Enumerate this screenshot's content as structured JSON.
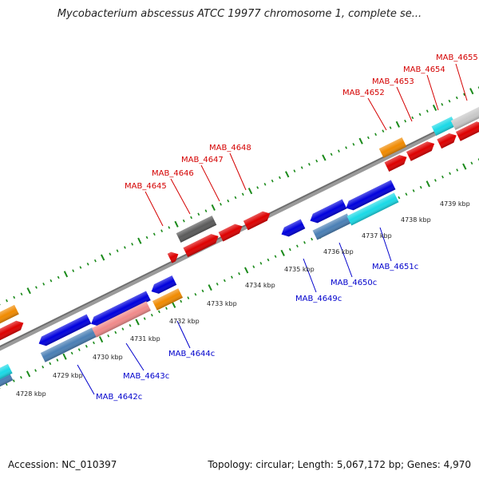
{
  "title": "Mycobacterium abscessus ATCC 19977 chromosome 1, complete se...",
  "footer": {
    "accession": "Accession: NC_010397",
    "summary": "Topology: circular; Length: 5,067,172 bp; Genes: 4,970"
  },
  "ruler": {
    "kbp_labels": [
      "4728 kbp",
      "4729 kbp",
      "4730 kbp",
      "4731 kbp",
      "4732 kbp",
      "4733 kbp",
      "4734 kbp",
      "4735 kbp",
      "4736 kbp",
      "4737 kbp",
      "4738 kbp",
      "4739 kbp"
    ]
  },
  "genes_forward": [
    {
      "name": "MAB_4645",
      "color": "#dd0000"
    },
    {
      "name": "MAB_4646",
      "color": "#dd0000"
    },
    {
      "name": "MAB_4647",
      "color": "#dd0000"
    },
    {
      "name": "MAB_4648",
      "color": "#dd0000"
    },
    {
      "name": "MAB_4652",
      "color": "#dd0000"
    },
    {
      "name": "MAB_4653",
      "color": "#dd0000"
    },
    {
      "name": "MAB_4654",
      "color": "#dd0000"
    },
    {
      "name": "MAB_4655",
      "color": "#dd0000"
    }
  ],
  "genes_reverse": [
    {
      "name": "MAB_4642c",
      "color": "#0000dd"
    },
    {
      "name": "MAB_4643c",
      "color": "#0000dd"
    },
    {
      "name": "MAB_4644c",
      "color": "#0000dd"
    },
    {
      "name": "MAB_4649c",
      "color": "#0000dd"
    },
    {
      "name": "MAB_4650c",
      "color": "#0000dd"
    },
    {
      "name": "MAB_4651c",
      "color": "#0000dd"
    }
  ],
  "colors": {
    "forward": "#dd0000",
    "reverse": "#0000dd",
    "pink": "#f08a8a",
    "steelblue": "#4a7fb5",
    "cyan": "#1ad9e6",
    "orange": "#f08a00",
    "darkgray": "#5a5a5a",
    "lightgray": "#c8c8c8",
    "backbone": "#808080",
    "ticks": "#1a8a1a"
  }
}
